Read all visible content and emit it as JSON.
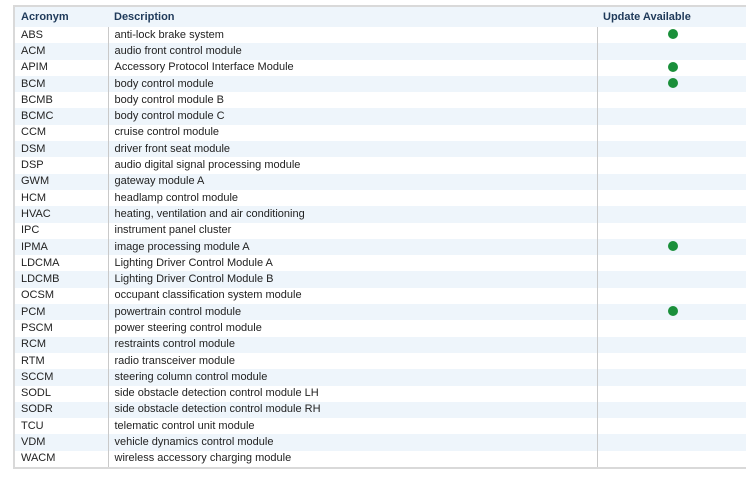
{
  "headers": {
    "acronym": "Acronym",
    "description": "Description",
    "update": "Update Available"
  },
  "colors": {
    "update_dot": "#1a8f3a",
    "header_bg": "#eef5fb",
    "stripe_bg": "#eef5fb"
  },
  "rows": [
    {
      "acronym": "ABS",
      "description": "anti-lock brake system",
      "update": true
    },
    {
      "acronym": "ACM",
      "description": "audio front control module",
      "update": false
    },
    {
      "acronym": "APIM",
      "description": "Accessory Protocol Interface Module",
      "update": true
    },
    {
      "acronym": "BCM",
      "description": "body control module",
      "update": true
    },
    {
      "acronym": "BCMB",
      "description": "body control module B",
      "update": false
    },
    {
      "acronym": "BCMC",
      "description": "body control module C",
      "update": false
    },
    {
      "acronym": "CCM",
      "description": "cruise control module",
      "update": false
    },
    {
      "acronym": "DSM",
      "description": "driver front seat module",
      "update": false
    },
    {
      "acronym": "DSP",
      "description": "audio digital signal processing module",
      "update": false
    },
    {
      "acronym": "GWM",
      "description": "gateway module A",
      "update": false
    },
    {
      "acronym": "HCM",
      "description": "headlamp control module",
      "update": false
    },
    {
      "acronym": "HVAC",
      "description": "heating, ventilation and air conditioning",
      "update": false
    },
    {
      "acronym": "IPC",
      "description": "instrument panel cluster",
      "update": false
    },
    {
      "acronym": "IPMA",
      "description": "image processing module A",
      "update": true
    },
    {
      "acronym": "LDCMA",
      "description": "Lighting Driver Control Module A",
      "update": false
    },
    {
      "acronym": "LDCMB",
      "description": "Lighting Driver Control Module B",
      "update": false
    },
    {
      "acronym": "OCSM",
      "description": "occupant classification system module",
      "update": false
    },
    {
      "acronym": "PCM",
      "description": "powertrain control module",
      "update": true
    },
    {
      "acronym": "PSCM",
      "description": "power steering control module",
      "update": false
    },
    {
      "acronym": "RCM",
      "description": "restraints control module",
      "update": false
    },
    {
      "acronym": "RTM",
      "description": "radio transceiver module",
      "update": false
    },
    {
      "acronym": "SCCM",
      "description": "steering column control module",
      "update": false
    },
    {
      "acronym": "SODL",
      "description": "side obstacle detection control module LH",
      "update": false
    },
    {
      "acronym": "SODR",
      "description": "side obstacle detection control module RH",
      "update": false
    },
    {
      "acronym": "TCU",
      "description": "telematic control unit module",
      "update": false
    },
    {
      "acronym": "VDM",
      "description": "vehicle dynamics control module",
      "update": false
    },
    {
      "acronym": "WACM",
      "description": "wireless accessory charging module",
      "update": false
    }
  ]
}
